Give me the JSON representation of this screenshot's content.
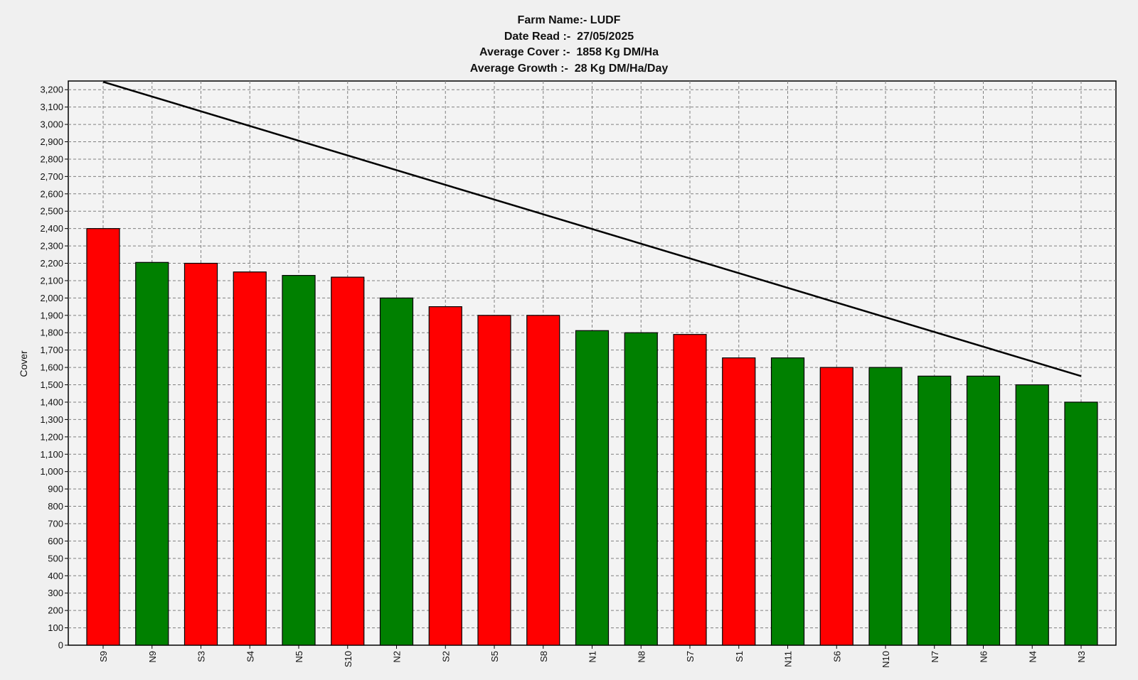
{
  "chart_data": {
    "type": "bar",
    "title_lines": [
      "Farm Name:- LUDF",
      "Date Read :-  27/05/2025",
      "Average Cover :-  1858 Kg DM/Ha",
      "Average Growth :-  28 Kg DM/Ha/Day"
    ],
    "ylabel": "Cover",
    "xlabel": "",
    "ylim": [
      0,
      3250
    ],
    "ytick_step": 100,
    "grid": true,
    "categories": [
      "S9",
      "N9",
      "S3",
      "S4",
      "N5",
      "S10",
      "N2",
      "S2",
      "S5",
      "S8",
      "N1",
      "N8",
      "S7",
      "S1",
      "N11",
      "S6",
      "N10",
      "N7",
      "N6",
      "N4",
      "N3"
    ],
    "values": [
      2400,
      2205,
      2200,
      2150,
      2130,
      2120,
      2000,
      1950,
      1900,
      1900,
      1812,
      1800,
      1790,
      1655,
      1655,
      1600,
      1600,
      1550,
      1550,
      1500,
      1400
    ],
    "bar_colors": [
      "red",
      "green",
      "red",
      "red",
      "green",
      "red",
      "green",
      "red",
      "red",
      "red",
      "green",
      "green",
      "red",
      "red",
      "green",
      "red",
      "green",
      "green",
      "green",
      "green",
      "green"
    ],
    "palette": {
      "red": "#ff0000",
      "green": "#008000",
      "line": "#000000",
      "grid": "#808080",
      "plot_bg": "#f3f3f3"
    },
    "line": {
      "y_start": 3245,
      "y_end": 1550
    }
  }
}
